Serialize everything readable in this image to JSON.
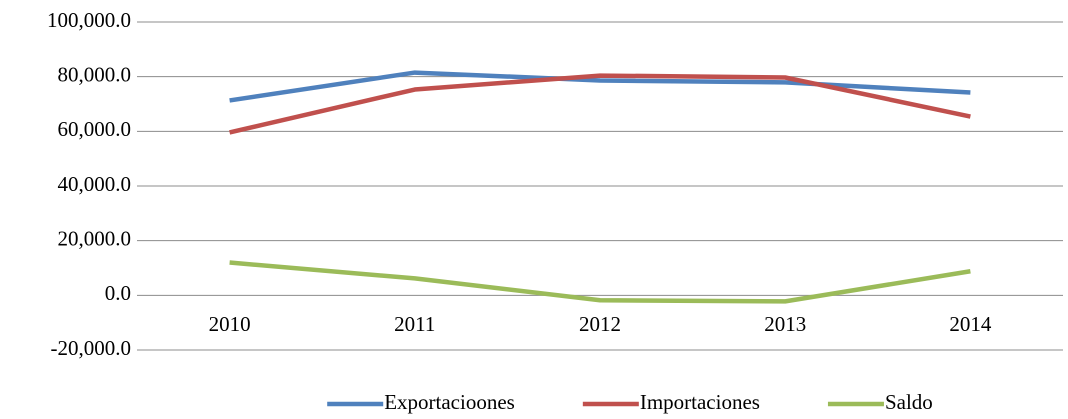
{
  "chart_data": {
    "type": "line",
    "categories": [
      "2010",
      "2011",
      "2012",
      "2013",
      "2014"
    ],
    "series": [
      {
        "name": "Exportacioones",
        "color": "#4f81bd",
        "values": [
          71300,
          81500,
          78600,
          77900,
          74200
        ]
      },
      {
        "name": "Importaciones",
        "color": "#c0504d",
        "values": [
          59600,
          75300,
          80400,
          79700,
          65400
        ]
      },
      {
        "name": "Saldo",
        "color": "#9bbb59",
        "values": [
          12000,
          6200,
          -1800,
          -2200,
          8800
        ]
      }
    ],
    "ylim": [
      -20000,
      100000
    ],
    "yticks": [
      {
        "value": -20000,
        "label": "-20,000.0"
      },
      {
        "value": 0,
        "label": "0.0"
      },
      {
        "value": 20000,
        "label": "20,000.0"
      },
      {
        "value": 40000,
        "label": "40,000.0"
      },
      {
        "value": 60000,
        "label": "60,000.0"
      },
      {
        "value": 80000,
        "label": "80,000.0"
      },
      {
        "value": 100000,
        "label": "100,000.0"
      }
    ],
    "grid": true,
    "legend": "bottom"
  }
}
